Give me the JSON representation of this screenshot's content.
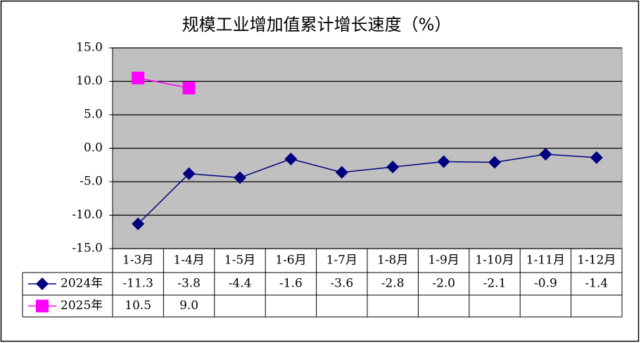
{
  "chart_data": {
    "type": "line",
    "title": "规模工业增加值累计增长速度（%）",
    "categories": [
      "1-3月",
      "1-4月",
      "1-5月",
      "1-6月",
      "1-7月",
      "1-8月",
      "1-9月",
      "1-10月",
      "1-11月",
      "1-12月"
    ],
    "series": [
      {
        "name": "2024年",
        "color": "#000080",
        "marker": "diamond",
        "values": [
          -11.3,
          -3.8,
          -4.4,
          -1.6,
          -3.6,
          -2.8,
          -2.0,
          -2.1,
          -0.9,
          -1.4
        ],
        "value_labels": [
          "-11.3",
          "-3.8",
          "-4.4",
          "-1.6",
          "-3.6",
          "-2.8",
          "-2.0",
          "-2.1",
          "-0.9",
          "-1.4"
        ]
      },
      {
        "name": "2025年",
        "color": "#ff00ff",
        "marker": "square",
        "values": [
          10.5,
          9.0,
          null,
          null,
          null,
          null,
          null,
          null,
          null,
          null
        ],
        "value_labels": [
          "10.5",
          "9.0",
          null,
          null,
          null,
          null,
          null,
          null,
          null,
          null
        ]
      }
    ],
    "ylim": [
      -15,
      15
    ],
    "yticks": [
      {
        "value": -15,
        "label": "-15.0"
      },
      {
        "value": -10,
        "label": "-10.0"
      },
      {
        "value": -5,
        "label": "-5.0"
      },
      {
        "value": 0,
        "label": "0.0"
      },
      {
        "value": 5,
        "label": "5.0"
      },
      {
        "value": 10,
        "label": "10.0"
      },
      {
        "value": 15,
        "label": "15.0"
      }
    ],
    "grid": true
  }
}
